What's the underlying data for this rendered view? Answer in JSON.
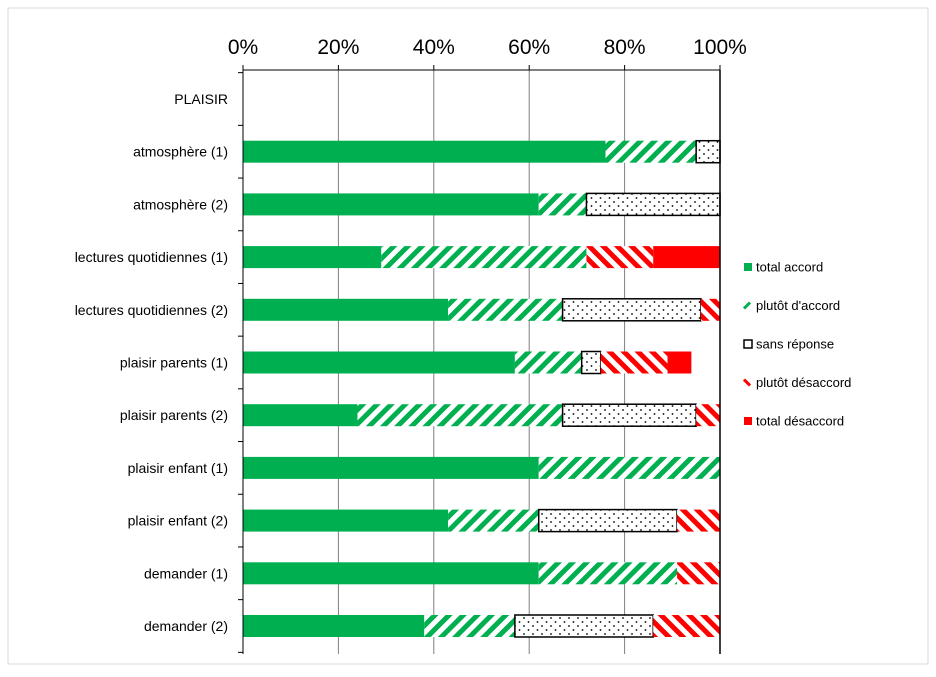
{
  "chart_data": {
    "type": "bar",
    "stacked": true,
    "orientation": "horizontal",
    "title": "",
    "xlim": [
      0,
      100
    ],
    "x_ticks": [
      "0%",
      "20%",
      "40%",
      "60%",
      "80%",
      "100%"
    ],
    "x_axis_position": "top",
    "grid": true,
    "legend_position": "right",
    "categories": [
      "PLAISIR",
      "atmosphère (1)",
      "atmosphère (2)",
      "lectures quotidiennes (1)",
      "lectures quotidiennes (2)",
      "plaisir parents (1)",
      "plaisir parents (2)",
      "plaisir enfant (1)",
      "plaisir enfant (2)",
      "demander (1)",
      "demander (2)"
    ],
    "series": [
      {
        "name": "total accord",
        "color": "#00b050",
        "pattern": "solid",
        "values": [
          0,
          76,
          62,
          29,
          43,
          57,
          24,
          62,
          43,
          62,
          38
        ]
      },
      {
        "name": "plutôt d'accord",
        "color": "#00b050",
        "pattern": "diagonal-stripe",
        "values": [
          0,
          19,
          10,
          43,
          24,
          14,
          43,
          38,
          19,
          29,
          19
        ]
      },
      {
        "name": "sans réponse",
        "color": "#000000",
        "pattern": "dots",
        "values": [
          0,
          5,
          28,
          0,
          29,
          4,
          28,
          0,
          29,
          0,
          29
        ]
      },
      {
        "name": "plutôt désaccord",
        "color": "#ff0000",
        "pattern": "diagonal-stripe",
        "values": [
          0,
          0,
          0,
          14,
          4,
          14,
          5,
          0,
          9,
          9,
          14
        ]
      },
      {
        "name": "total désaccord",
        "color": "#ff0000",
        "pattern": "solid",
        "values": [
          0,
          0,
          0,
          14,
          0,
          5,
          0,
          0,
          0,
          0,
          0
        ]
      }
    ]
  }
}
